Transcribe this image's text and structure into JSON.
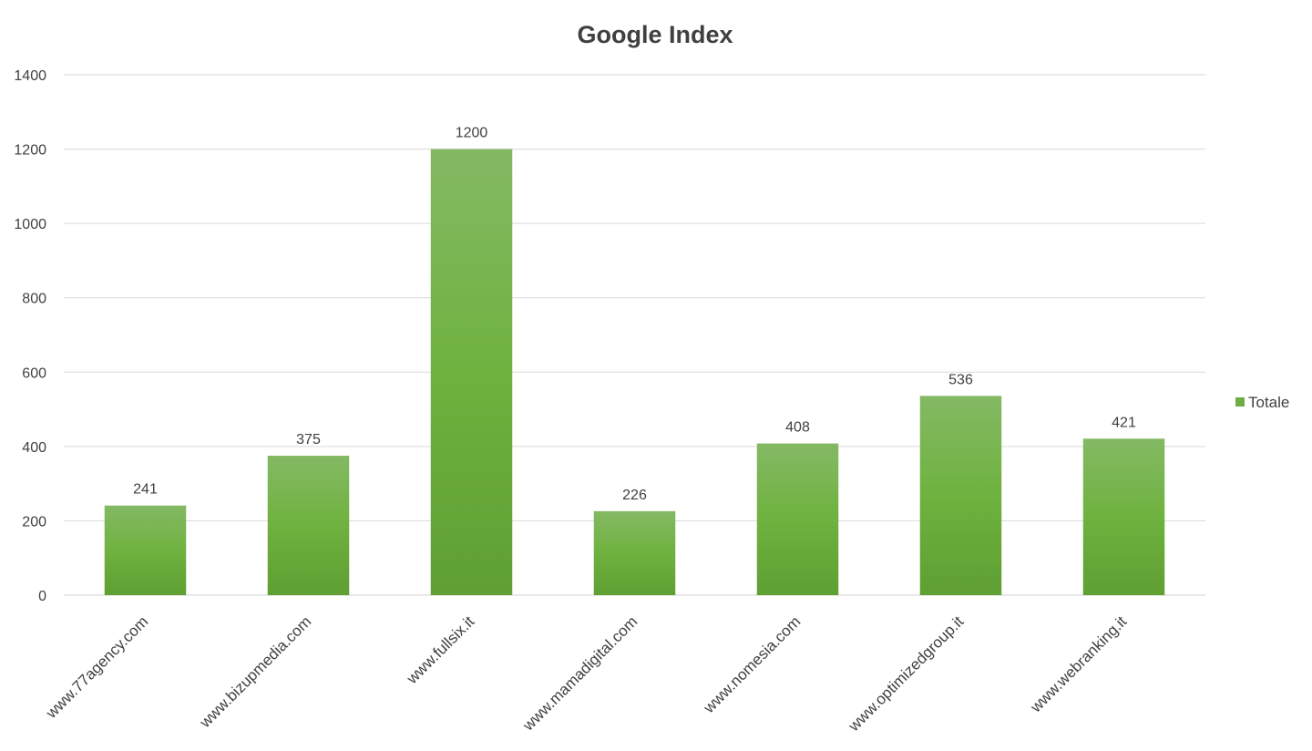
{
  "chart_data": {
    "type": "bar",
    "title": "Google Index",
    "xlabel": "",
    "ylabel": "",
    "categories": [
      "www.77agency.com",
      "www.bizupmedia.com",
      "www.fullsix.it",
      "www.mamadigital.com",
      "www.nomesia.com",
      "www.optimizedgroup.it",
      "www.webranking.it"
    ],
    "series": [
      {
        "name": "Totale",
        "values": [
          241,
          375,
          1200,
          226,
          408,
          536,
          421
        ],
        "color": "#70ad47"
      }
    ],
    "ylim": [
      0,
      1400
    ],
    "yticks": [
      0,
      200,
      400,
      600,
      800,
      1000,
      1200,
      1400
    ],
    "grid": true,
    "legend_position": "right",
    "data_labels": true
  }
}
